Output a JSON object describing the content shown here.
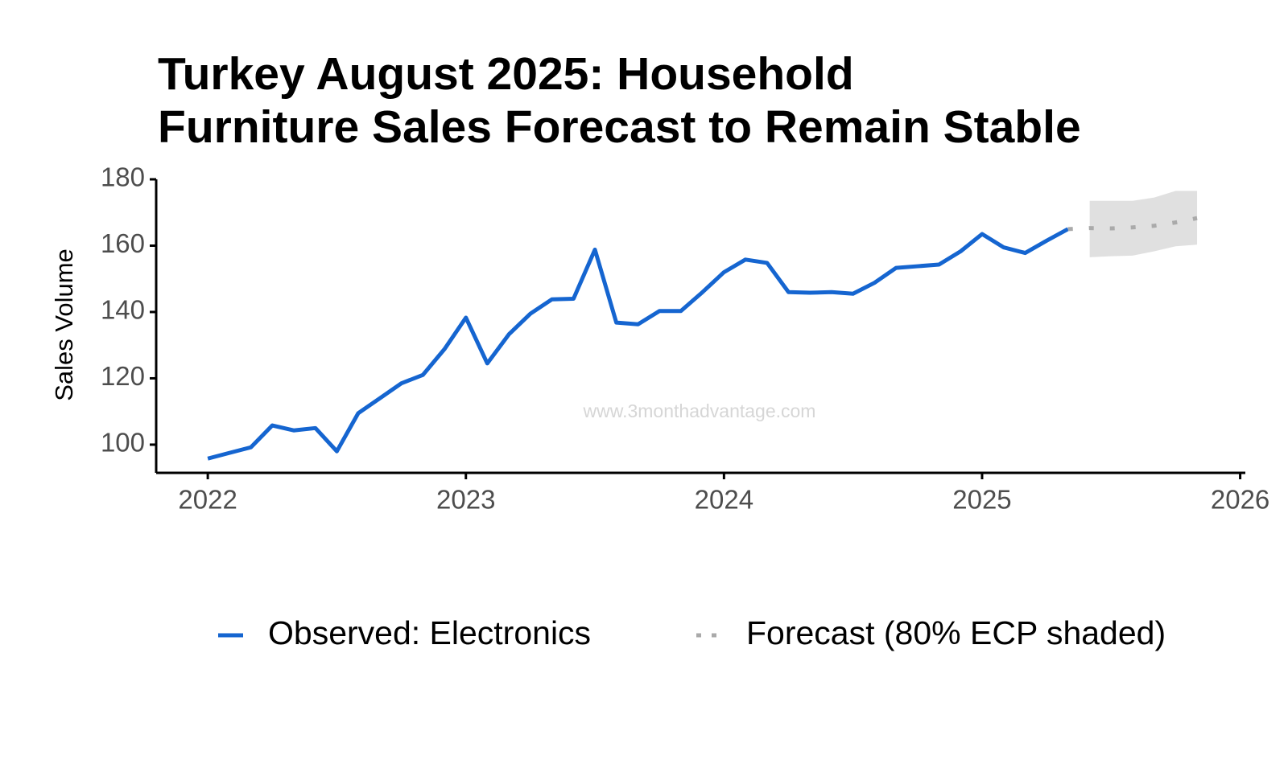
{
  "chart_data": {
    "type": "line",
    "title": [
      "Turkey August 2025: Household",
      "Furniture Sales Forecast to Remain Stable"
    ],
    "ylabel": "Sales Volume",
    "watermark": "www.3monthadvantage.com",
    "xlim": [
      2021.8,
      2026.02
    ],
    "xticks": [
      2022,
      2023,
      2024,
      2025,
      2026
    ],
    "ylim": [
      91.5,
      180
    ],
    "yticks": [
      100,
      120,
      140,
      160,
      180
    ],
    "grid": false,
    "legend": "bottom",
    "series": [
      {
        "name": "Observed: Electronics",
        "color": "#1565d0",
        "x": [
          2022,
          2022.083,
          2022.167,
          2022.25,
          2022.333,
          2022.417,
          2022.5,
          2022.583,
          2022.667,
          2022.75,
          2022.833,
          2022.917,
          2023,
          2023.083,
          2023.167,
          2023.25,
          2023.333,
          2023.417,
          2023.5,
          2023.583,
          2023.667,
          2023.75,
          2023.833,
          2023.917,
          2024,
          2024.083,
          2024.167,
          2024.25,
          2024.333,
          2024.417,
          2024.5,
          2024.583,
          2024.667,
          2024.75,
          2024.833,
          2024.917,
          2025,
          2025.083,
          2025.167,
          2025.25,
          2025.333
        ],
        "values": [
          95.8,
          97.5,
          99.2,
          105.8,
          104.3,
          105,
          98,
          109.5,
          114,
          118.5,
          121,
          128.8,
          138.3,
          124.5,
          133.3,
          139.5,
          143.8,
          144,
          158.8,
          136.8,
          136.3,
          140.3,
          140.3,
          146,
          152,
          155.8,
          154.8,
          146,
          145.8,
          146,
          145.5,
          148.8,
          153.3,
          153.8,
          154.3,
          158.3,
          163.5,
          159.5,
          157.8,
          161.5,
          165
        ]
      },
      {
        "name": "Forecast (80% ECP shaded)",
        "color": "#aaaaaa",
        "band_color": "#e0e0e0",
        "x": [
          2025.333,
          2025.417,
          2025.5,
          2025.583,
          2025.667,
          2025.75,
          2025.833
        ],
        "values": [
          165,
          165.3,
          165.2,
          165.5,
          166,
          167,
          168.3
        ],
        "upper": [
          null,
          173.5,
          173.5,
          173.5,
          174.5,
          176.5,
          176.5
        ],
        "lower": [
          null,
          156.5,
          156.8,
          157,
          158.3,
          159.8,
          160.3
        ]
      }
    ]
  }
}
